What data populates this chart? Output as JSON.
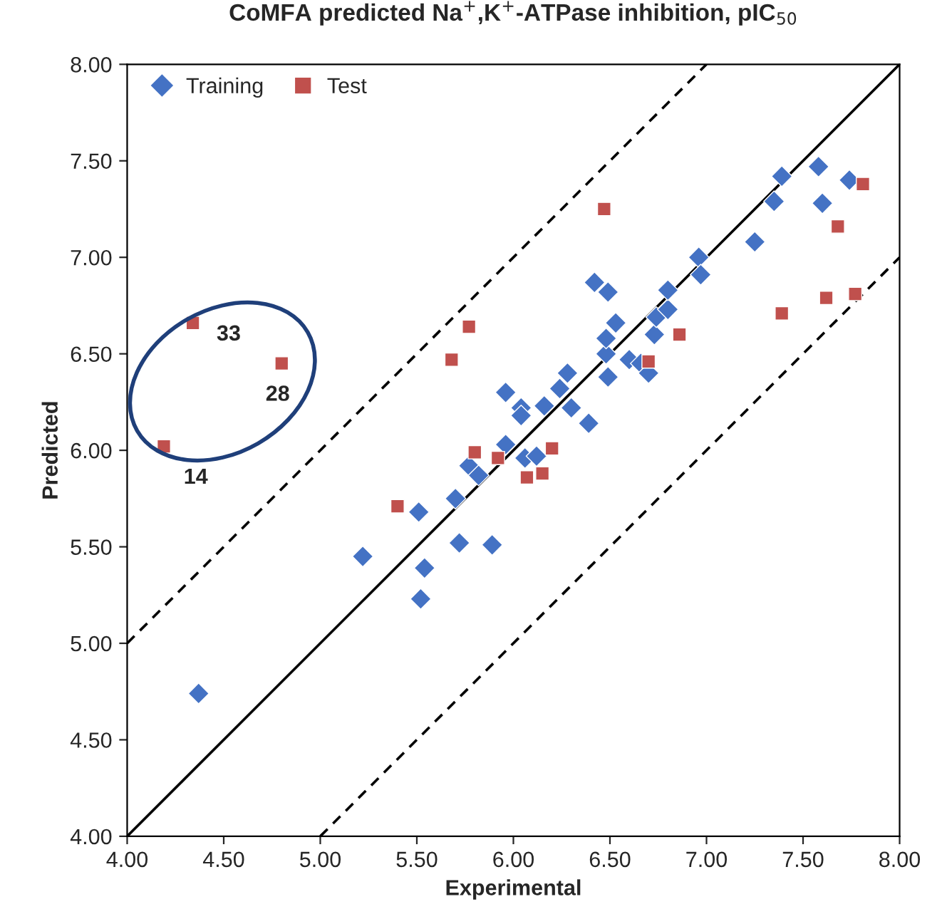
{
  "chart_data": {
    "type": "scatter",
    "title": "CoMFA predicted Na$^{+}$,K$^{+}$-ATPase inhibition, pIC$_{50}$",
    "xlabel": "Experimental",
    "ylabel": "Predicted",
    "xlim": [
      4,
      8
    ],
    "ylim": [
      4,
      8
    ],
    "xticks": [
      {
        "value": 4,
        "label": "4.00"
      },
      {
        "value": 4.5,
        "label": "4.50"
      },
      {
        "value": 5,
        "label": "5.00"
      },
      {
        "value": 5.5,
        "label": "5.50"
      },
      {
        "value": 6,
        "label": "6.00"
      },
      {
        "value": 6.5,
        "label": "6.50"
      },
      {
        "value": 7,
        "label": "7.00"
      },
      {
        "value": 7.5,
        "label": "7.50"
      },
      {
        "value": 8,
        "label": "8.00"
      }
    ],
    "yticks": [
      {
        "value": 4,
        "label": "4.00"
      },
      {
        "value": 4.5,
        "label": "4.50"
      },
      {
        "value": 5,
        "label": "5.00"
      },
      {
        "value": 5.5,
        "label": "5.50"
      },
      {
        "value": 6,
        "label": "6.00"
      },
      {
        "value": 6.5,
        "label": "6.50"
      },
      {
        "value": 7,
        "label": "7.00"
      },
      {
        "value": 7.5,
        "label": "7.50"
      },
      {
        "value": 8,
        "label": "8.00"
      }
    ],
    "grid": false,
    "legend": "top left",
    "series": [
      {
        "name": "Training",
        "marker": "diamond",
        "color": "#4472c4",
        "x": [
          4.37,
          5.22,
          5.51,
          5.54,
          5.52,
          5.7,
          5.72,
          5.89,
          5.77,
          5.82,
          5.96,
          6.06,
          6.12,
          6.39,
          6.3,
          6.16,
          6.04,
          6.04,
          5.96,
          6.24,
          6.28,
          6.48,
          6.49,
          6.48,
          6.53,
          6.42,
          6.49,
          6.6,
          6.66,
          6.7,
          6.73,
          6.74,
          6.8,
          6.8,
          6.96,
          6.97,
          7.25,
          7.35,
          7.39,
          7.6,
          7.58,
          7.74
        ],
        "values": [
          4.74,
          5.45,
          5.68,
          5.39,
          5.23,
          5.75,
          5.52,
          5.51,
          5.92,
          5.87,
          6.03,
          5.96,
          5.97,
          6.14,
          6.22,
          6.23,
          6.22,
          6.18,
          6.3,
          6.32,
          6.4,
          6.5,
          6.38,
          6.58,
          6.66,
          6.87,
          6.82,
          6.47,
          6.45,
          6.4,
          6.6,
          6.69,
          6.73,
          6.83,
          7.0,
          6.91,
          7.08,
          7.29,
          7.42,
          7.28,
          7.47,
          7.4
        ]
      },
      {
        "name": "Test",
        "marker": "square",
        "color": "#c0504d",
        "x": [
          4.34,
          4.8,
          4.19,
          5.4,
          5.8,
          5.92,
          6.2,
          6.07,
          6.15,
          5.77,
          5.68,
          6.47,
          6.86,
          6.7,
          7.39,
          7.62,
          7.77,
          7.68,
          7.81
        ],
        "values": [
          6.66,
          6.45,
          6.02,
          5.71,
          5.99,
          5.96,
          6.01,
          5.86,
          5.88,
          6.64,
          6.47,
          7.25,
          6.6,
          6.46,
          6.71,
          6.79,
          6.81,
          7.16,
          7.38
        ]
      },
      {
        "type": "line",
        "color": "#000000",
        "line_style": "solid",
        "marker": "none",
        "x": [
          4,
          8
        ],
        "values": [
          4,
          8
        ]
      },
      {
        "type": "line",
        "color": "#000000",
        "line_style": "dashed",
        "marker": "none",
        "x": [
          4,
          7
        ],
        "values": [
          5,
          8
        ]
      },
      {
        "type": "line",
        "color": "#000000",
        "line_style": "dashed",
        "marker": "none",
        "x": [
          5,
          8
        ],
        "values": [
          4,
          7
        ]
      }
    ],
    "annotations": [
      {
        "text": "33",
        "x": 4.34,
        "y": 6.66
      },
      {
        "text": "28",
        "x": 4.8,
        "y": 6.45
      },
      {
        "text": "14",
        "x": 4.19,
        "y": 6.02
      }
    ]
  }
}
